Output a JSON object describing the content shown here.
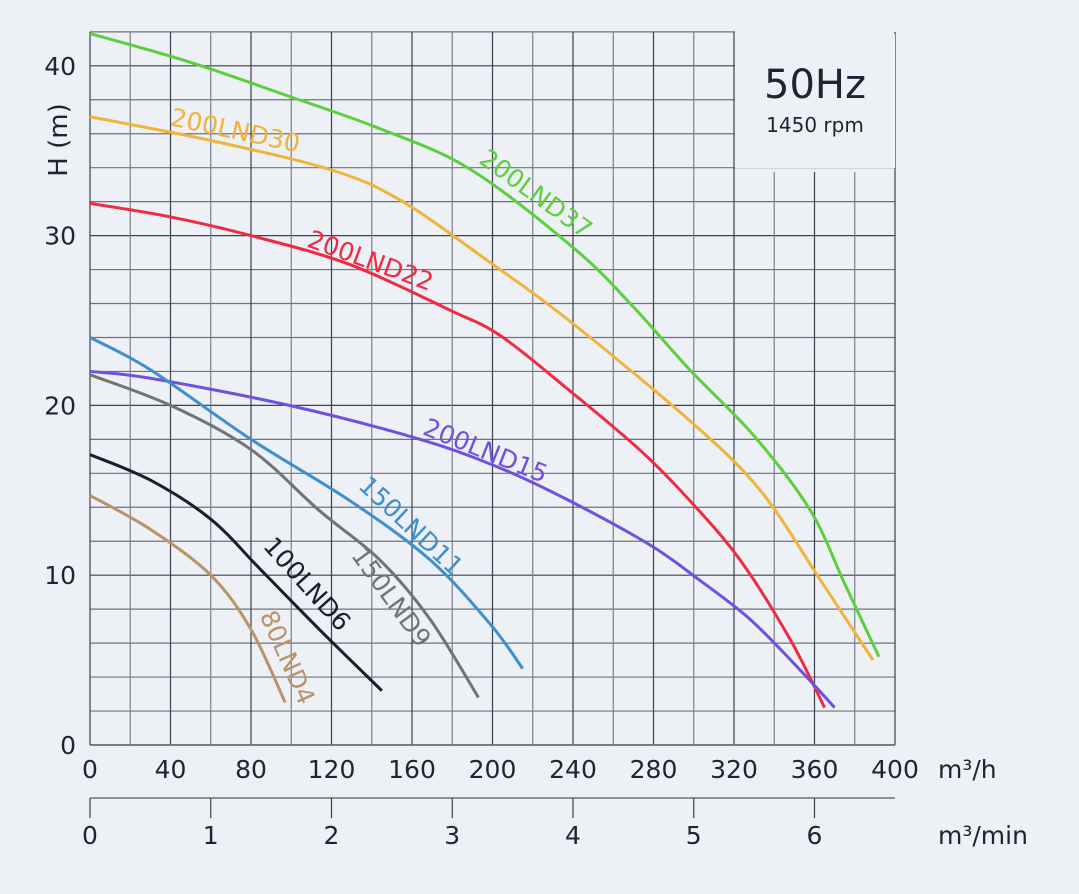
{
  "chart_data": {
    "type": "line",
    "title": "",
    "ylabel": "H (m)",
    "xlabel": "m³/h",
    "xlabel_secondary": "m³/min",
    "xlim": [
      0,
      400
    ],
    "ylim": [
      0,
      42
    ],
    "grid": true,
    "x_ticks": [
      "0",
      "40",
      "80",
      "120",
      "160",
      "200",
      "240",
      "280",
      "320",
      "360",
      "400"
    ],
    "y_ticks": [
      "0",
      "10",
      "20",
      "30",
      "40"
    ],
    "secondary_x_ticks": [
      "0",
      "1",
      "2",
      "3",
      "4",
      "5",
      "6"
    ],
    "info_box": {
      "frequency": "50Hz",
      "speed": "1450 rpm"
    },
    "series": [
      {
        "name": "200LND37",
        "color": "#5dcf3f",
        "x": [
          0,
          50,
          99,
          144,
          189,
          241,
          270,
          298,
          330,
          358,
          375,
          392
        ],
        "y": [
          41.9,
          40.2,
          38.2,
          36.3,
          33.9,
          29.2,
          25.8,
          22.1,
          18.2,
          13.8,
          9.5,
          5.2
        ]
      },
      {
        "name": "200LND30",
        "color": "#f0b43a",
        "x": [
          0,
          60,
          119,
          154,
          199,
          238,
          298,
          333,
          363,
          389
        ],
        "y": [
          37.0,
          35.6,
          33.9,
          32.1,
          28.4,
          25.0,
          19.1,
          15.0,
          9.7,
          5.0
        ]
      },
      {
        "name": "200LND22",
        "color": "#f02a43",
        "x": [
          0,
          40,
          80,
          129,
          179,
          204,
          238,
          273,
          298,
          323,
          348,
          365
        ],
        "y": [
          31.9,
          31.1,
          30.0,
          28.3,
          25.6,
          24.1,
          20.9,
          17.4,
          14.4,
          10.9,
          6.2,
          2.2
        ]
      },
      {
        "name": "200LND15",
        "color": "#7150e0",
        "x": [
          0,
          30,
          99,
          164,
          204,
          238,
          278,
          303,
          328,
          353,
          370
        ],
        "y": [
          22.0,
          21.6,
          20.0,
          18.0,
          16.3,
          14.4,
          11.8,
          9.7,
          7.4,
          4.4,
          2.2
        ]
      },
      {
        "name": "150LND11",
        "color": "#3d8fd0",
        "x": [
          0,
          30,
          80,
          129,
          169,
          199,
          215
        ],
        "y": [
          24.0,
          22.1,
          18.0,
          14.4,
          10.9,
          7.1,
          4.5
        ]
      },
      {
        "name": "150LND9",
        "color": "#6f7478",
        "x": [
          0,
          40,
          80,
          114,
          144,
          169,
          193
        ],
        "y": [
          21.8,
          20.0,
          17.4,
          13.8,
          10.9,
          7.4,
          2.8
        ]
      },
      {
        "name": "100LND6",
        "color": "#1a1e2c",
        "x": [
          0,
          30,
          60,
          85,
          114,
          145
        ],
        "y": [
          17.1,
          15.6,
          13.3,
          10.3,
          6.8,
          3.2
        ]
      },
      {
        "name": "80LND4",
        "color": "#b8946a",
        "x": [
          0,
          30,
          60,
          80,
          97
        ],
        "y": [
          14.7,
          12.7,
          10.0,
          6.8,
          2.5
        ]
      }
    ]
  }
}
